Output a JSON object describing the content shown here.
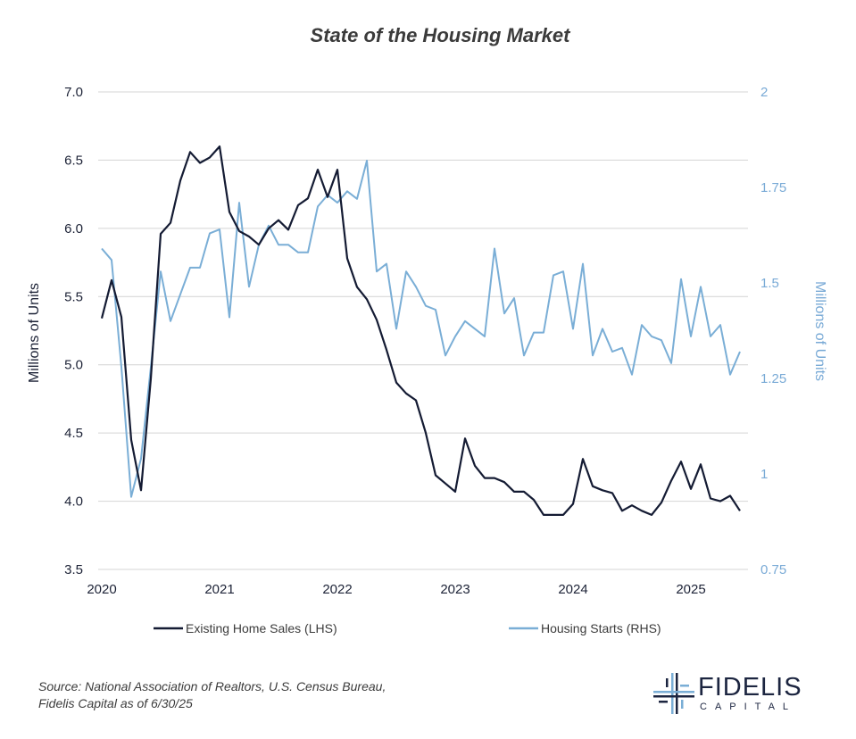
{
  "chart_data": {
    "type": "line",
    "title": "State of the Housing Market",
    "ylabel_left": "Millions of Units",
    "ylabel_right": "Millions of Units",
    "ylim_left": [
      3.5,
      7.0
    ],
    "ylim_right": [
      0.75,
      2.0
    ],
    "yticks_left": [
      "7.0",
      "6.5",
      "6.0",
      "5.5",
      "5.0",
      "4.5",
      "4.0",
      "3.5"
    ],
    "yticks_right": [
      "2",
      "1.75",
      "1.5",
      "1.25",
      "1",
      "0.75"
    ],
    "x_ticks": [
      "2020",
      "2021",
      "2022",
      "2023",
      "2024",
      "2025"
    ],
    "x_start": "2020-01",
    "grid": true,
    "legend_position": "bottom",
    "series": [
      {
        "name": "Existing Home Sales (LHS)",
        "axis": "left",
        "color": "#141b33",
        "values": [
          5.34,
          5.62,
          5.35,
          4.45,
          4.08,
          4.9,
          5.96,
          6.04,
          6.35,
          6.56,
          6.48,
          6.52,
          6.6,
          6.12,
          5.98,
          5.94,
          5.88,
          6.0,
          6.06,
          5.99,
          6.17,
          6.22,
          6.43,
          6.23,
          6.43,
          5.78,
          5.57,
          5.48,
          5.33,
          5.11,
          4.87,
          4.79,
          4.74,
          4.5,
          4.19,
          4.13,
          4.07,
          4.46,
          4.26,
          4.17,
          4.17,
          4.14,
          4.07,
          4.07,
          4.01,
          3.9,
          3.9,
          3.9,
          3.98,
          4.31,
          4.11,
          4.08,
          4.06,
          3.93,
          3.97,
          3.93,
          3.9,
          3.99,
          4.15,
          4.29,
          4.09,
          4.27,
          4.02,
          4.0,
          4.04,
          3.93
        ]
      },
      {
        "name": "Housing Starts (RHS)",
        "axis": "right",
        "color": "#7aaed6",
        "values": [
          1.59,
          1.56,
          1.28,
          0.94,
          1.04,
          1.28,
          1.53,
          1.4,
          1.47,
          1.54,
          1.54,
          1.63,
          1.64,
          1.41,
          1.71,
          1.49,
          1.6,
          1.65,
          1.6,
          1.6,
          1.58,
          1.58,
          1.7,
          1.73,
          1.71,
          1.74,
          1.72,
          1.82,
          1.53,
          1.55,
          1.38,
          1.53,
          1.49,
          1.44,
          1.43,
          1.31,
          1.36,
          1.4,
          1.38,
          1.36,
          1.59,
          1.42,
          1.46,
          1.31,
          1.37,
          1.37,
          1.52,
          1.53,
          1.38,
          1.55,
          1.31,
          1.38,
          1.32,
          1.33,
          1.26,
          1.39,
          1.36,
          1.35,
          1.29,
          1.51,
          1.36,
          1.49,
          1.36,
          1.39,
          1.26,
          1.32
        ]
      }
    ]
  },
  "footer": {
    "source_line1": "Source: National Association of Realtors, U.S. Census Bureau,",
    "source_line2": "Fidelis Capital as of 6/30/25"
  },
  "logo": {
    "name": "FIDELIS",
    "sub": "CAPITAL"
  }
}
